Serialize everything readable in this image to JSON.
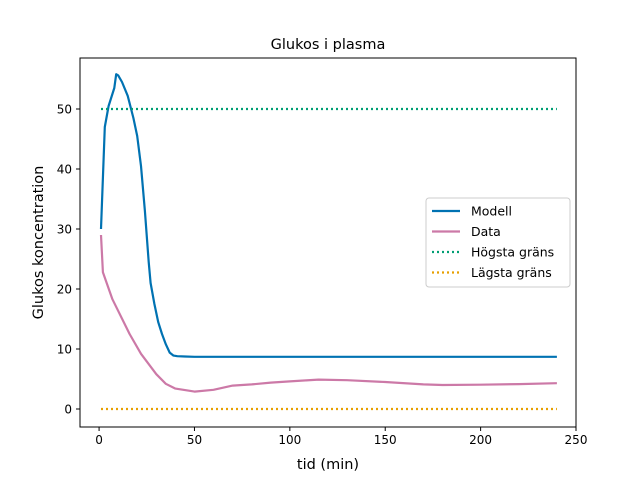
{
  "chart_data": {
    "type": "line",
    "title": "Glukos i plasma",
    "xlabel": "tid (min)",
    "ylabel": "Glukos koncentration",
    "xlim": [
      -10,
      250
    ],
    "ylim": [
      -3,
      58.5
    ],
    "xticks": [
      0,
      50,
      100,
      150,
      200,
      250
    ],
    "yticks": [
      0,
      10,
      20,
      30,
      40,
      50
    ],
    "grid": false,
    "legend_position": "center-right",
    "series": [
      {
        "name": "Modell",
        "color": "#0072b2",
        "style": "solid",
        "x": [
          1,
          3,
          5,
          8,
          9,
          10,
          12,
          15,
          18,
          20,
          22,
          24,
          26,
          27,
          29,
          31,
          33,
          35,
          37,
          39,
          41,
          45,
          50,
          100,
          150,
          200,
          240
        ],
        "y": [
          30,
          47,
          50.5,
          53.5,
          55.8,
          55.6,
          54.5,
          52.2,
          48.5,
          45.5,
          40.5,
          33,
          24.5,
          21,
          17.5,
          14.5,
          12.5,
          10.8,
          9.4,
          8.9,
          8.8,
          8.75,
          8.7,
          8.7,
          8.7,
          8.7,
          8.7
        ]
      },
      {
        "name": "Data",
        "color": "#cc79a7",
        "style": "solid",
        "x": [
          1,
          2,
          7,
          16,
          22,
          30,
          35,
          40,
          50,
          60,
          70,
          80,
          90,
          100,
          115,
          130,
          150,
          170,
          180,
          200,
          220,
          240
        ],
        "y": [
          29,
          22.8,
          18.3,
          12.5,
          9.2,
          5.8,
          4.2,
          3.4,
          2.9,
          3.2,
          3.9,
          4.1,
          4.4,
          4.6,
          4.9,
          4.8,
          4.5,
          4.1,
          4.0,
          4.05,
          4.15,
          4.3
        ]
      },
      {
        "name": "Högsta gräns",
        "color": "#009e73",
        "style": "dotted",
        "x": [
          1,
          240
        ],
        "y": [
          50,
          50
        ]
      },
      {
        "name": "Lägsta gräns",
        "color": "#e69f00",
        "style": "dotted",
        "x": [
          1,
          240
        ],
        "y": [
          0,
          0
        ]
      }
    ]
  }
}
